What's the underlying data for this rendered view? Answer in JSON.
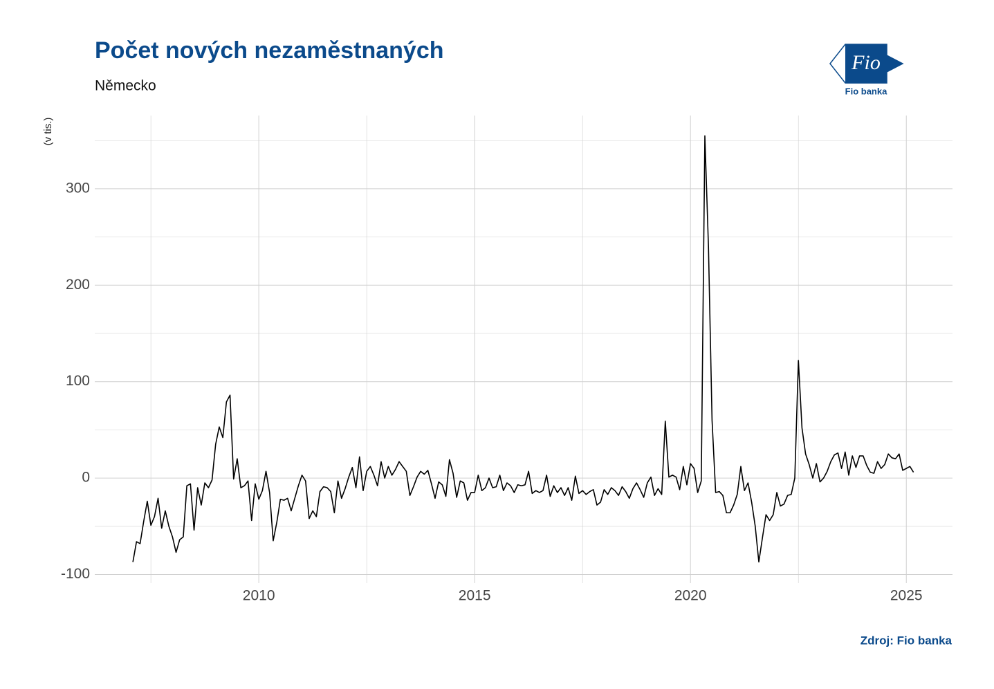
{
  "chart_data": {
    "type": "line",
    "title": "Počet nových nezaměstnaných",
    "subtitle": "Německo",
    "y_label": "(v tis.)",
    "source": "Zdroj: Fio banka",
    "logo": {
      "text": "Fio",
      "caption": "Fio banka"
    },
    "x": [
      "2007-01",
      "2007-02",
      "2007-03",
      "2007-04",
      "2007-05",
      "2007-06",
      "2007-07",
      "2007-08",
      "2007-09",
      "2007-10",
      "2007-11",
      "2007-12",
      "2008-01",
      "2008-02",
      "2008-03",
      "2008-04",
      "2008-05",
      "2008-06",
      "2008-07",
      "2008-08",
      "2008-09",
      "2008-10",
      "2008-11",
      "2008-12",
      "2009-01",
      "2009-02",
      "2009-03",
      "2009-04",
      "2009-05",
      "2009-06",
      "2009-07",
      "2009-08",
      "2009-09",
      "2009-10",
      "2009-11",
      "2009-12",
      "2010-01",
      "2010-02",
      "2010-03",
      "2010-04",
      "2010-05",
      "2010-06",
      "2010-07",
      "2010-08",
      "2010-09",
      "2010-10",
      "2010-11",
      "2010-12",
      "2011-01",
      "2011-02",
      "2011-03",
      "2011-04",
      "2011-05",
      "2011-06",
      "2011-07",
      "2011-08",
      "2011-09",
      "2011-10",
      "2011-11",
      "2011-12",
      "2012-01",
      "2012-02",
      "2012-03",
      "2012-04",
      "2012-05",
      "2012-06",
      "2012-07",
      "2012-08",
      "2012-09",
      "2012-10",
      "2012-11",
      "2012-12",
      "2013-01",
      "2013-02",
      "2013-03",
      "2013-04",
      "2013-05",
      "2013-06",
      "2013-07",
      "2013-08",
      "2013-09",
      "2013-10",
      "2013-11",
      "2013-12",
      "2014-01",
      "2014-02",
      "2014-03",
      "2014-04",
      "2014-05",
      "2014-06",
      "2014-07",
      "2014-08",
      "2014-09",
      "2014-10",
      "2014-11",
      "2014-12",
      "2015-01",
      "2015-02",
      "2015-03",
      "2015-04",
      "2015-05",
      "2015-06",
      "2015-07",
      "2015-08",
      "2015-09",
      "2015-10",
      "2015-11",
      "2015-12",
      "2016-01",
      "2016-02",
      "2016-03",
      "2016-04",
      "2016-05",
      "2016-06",
      "2016-07",
      "2016-08",
      "2016-09",
      "2016-10",
      "2016-11",
      "2016-12",
      "2017-01",
      "2017-02",
      "2017-03",
      "2017-04",
      "2017-05",
      "2017-06",
      "2017-07",
      "2017-08",
      "2017-09",
      "2017-10",
      "2017-11",
      "2017-12",
      "2018-01",
      "2018-02",
      "2018-03",
      "2018-04",
      "2018-05",
      "2018-06",
      "2018-07",
      "2018-08",
      "2018-09",
      "2018-10",
      "2018-11",
      "2018-12",
      "2019-01",
      "2019-02",
      "2019-03",
      "2019-04",
      "2019-05",
      "2019-06",
      "2019-07",
      "2019-08",
      "2019-09",
      "2019-10",
      "2019-11",
      "2019-12",
      "2020-01",
      "2020-02",
      "2020-03",
      "2020-04",
      "2020-05",
      "2020-06",
      "2020-07",
      "2020-08",
      "2020-09",
      "2020-10",
      "2020-11",
      "2020-12",
      "2021-01",
      "2021-02",
      "2021-03",
      "2021-04",
      "2021-05",
      "2021-06",
      "2021-07",
      "2021-08",
      "2021-09",
      "2021-10",
      "2021-11",
      "2021-12",
      "2022-01",
      "2022-02",
      "2022-03",
      "2022-04",
      "2022-05",
      "2022-06",
      "2022-07",
      "2022-08",
      "2022-09",
      "2022-10",
      "2022-11",
      "2022-12",
      "2023-01",
      "2023-02",
      "2023-03",
      "2023-04",
      "2023-05",
      "2023-06",
      "2023-07",
      "2023-08",
      "2023-09",
      "2023-10",
      "2023-11",
      "2023-12",
      "2024-01",
      "2024-02",
      "2024-03",
      "2024-04",
      "2024-05",
      "2024-06",
      "2024-07",
      "2024-08",
      "2024-09",
      "2024-10",
      "2024-11",
      "2024-12",
      "2025-01",
      "2025-02"
    ],
    "series": [
      {
        "name": "Německo",
        "color": "#000000",
        "values": [
          -87,
          -66,
          -68,
          -45,
          -24,
          -49,
          -40,
          -21,
          -52,
          -34,
          -50,
          -61,
          -77,
          -64,
          -61,
          -8,
          -6,
          -54,
          -10,
          -28,
          -5,
          -10,
          -2,
          35,
          53,
          42,
          79,
          86,
          -1,
          20,
          -10,
          -8,
          -3,
          -44,
          -6,
          -22,
          -13,
          7,
          -15,
          -65,
          -46,
          -22,
          -23,
          -21,
          -34,
          -21,
          -8,
          3,
          -3,
          -42,
          -34,
          -40,
          -14,
          -9,
          -10,
          -14,
          -36,
          -3,
          -21,
          -11,
          1,
          11,
          -10,
          22,
          -13,
          7,
          12,
          3,
          -8,
          17,
          0,
          12,
          3,
          9,
          17,
          12,
          7,
          -18,
          -9,
          1,
          7,
          4,
          8,
          -6,
          -21,
          -4,
          -7,
          -19,
          19,
          5,
          -20,
          -3,
          -5,
          -23,
          -15,
          -15,
          3,
          -13,
          -10,
          0,
          -10,
          -9,
          3,
          -13,
          -5,
          -8,
          -15,
          -7,
          -8,
          -7,
          7,
          -16,
          -13,
          -15,
          -13,
          3,
          -19,
          -8,
          -15,
          -10,
          -18,
          -10,
          -23,
          2,
          -16,
          -13,
          -17,
          -14,
          -12,
          -28,
          -25,
          -12,
          -17,
          -10,
          -13,
          -18,
          -9,
          -14,
          -21,
          -11,
          -5,
          -12,
          -20,
          -5,
          1,
          -18,
          -11,
          -17,
          59,
          1,
          3,
          1,
          -12,
          12,
          -7,
          15,
          10,
          -15,
          -3,
          355,
          240,
          60,
          -15,
          -14,
          -18,
          -36,
          -36,
          -28,
          -17,
          12,
          -13,
          -5,
          -25,
          -50,
          -87,
          -62,
          -38,
          -44,
          -38,
          -15,
          -29,
          -27,
          -18,
          -17,
          0,
          122,
          52,
          25,
          14,
          0,
          15,
          -4,
          0,
          7,
          17,
          24,
          26,
          10,
          27,
          3,
          23,
          11,
          23,
          23,
          13,
          6,
          5,
          17,
          10,
          14,
          25,
          21,
          20,
          25,
          8,
          10,
          12,
          6
        ]
      }
    ],
    "xlim": [
      2006.2,
      2026.07
    ],
    "xticks": [
      2010,
      2015,
      2020,
      2025
    ],
    "ylim": [
      -109,
      376
    ],
    "yticks": [
      -100,
      0,
      100,
      200,
      300
    ],
    "grid": true
  }
}
